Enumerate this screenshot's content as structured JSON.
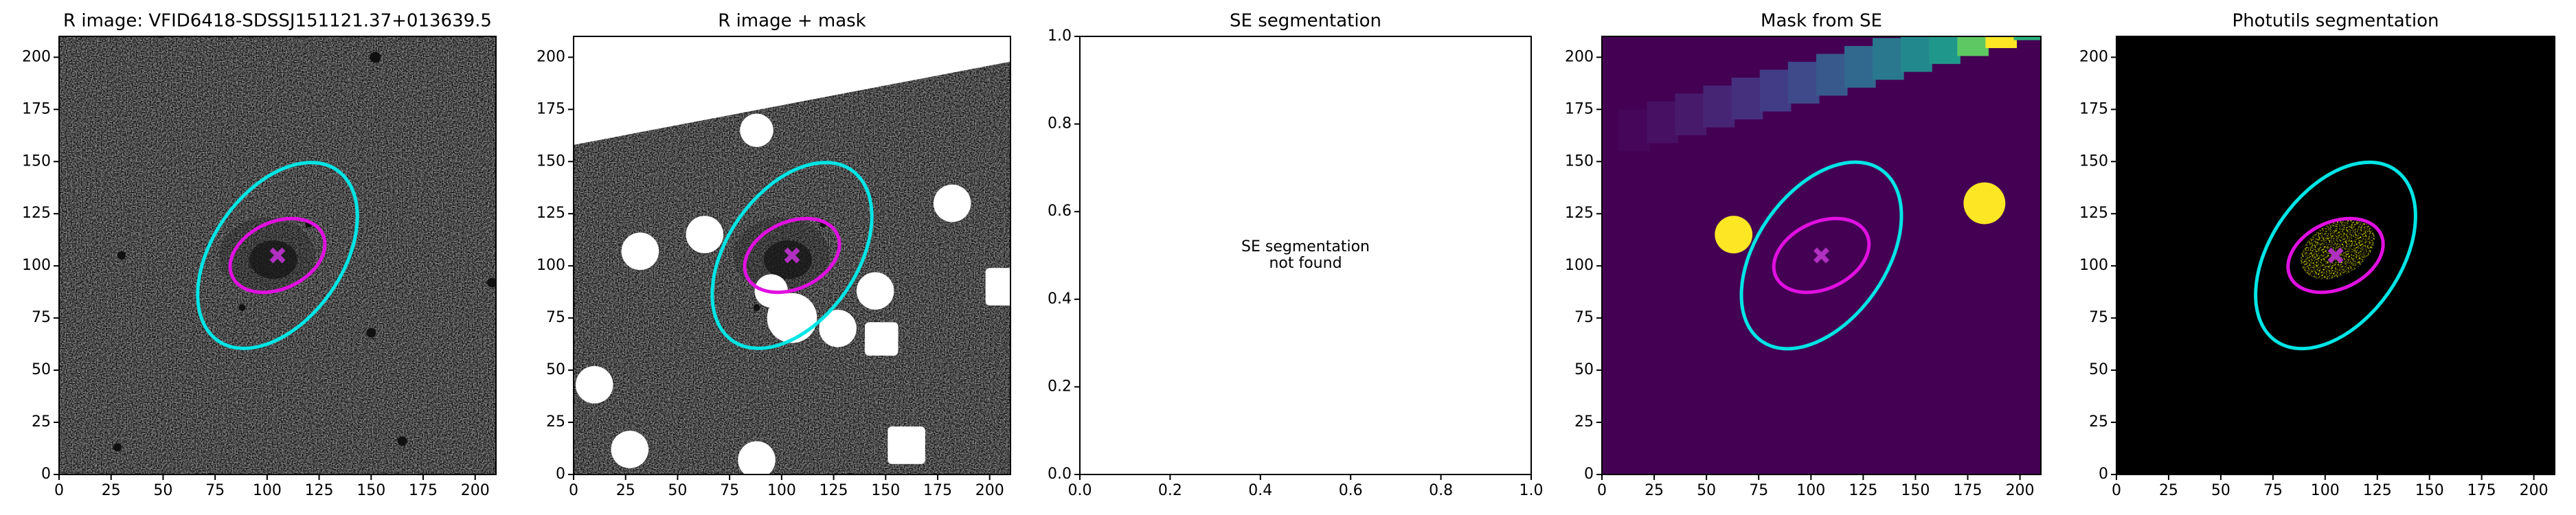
{
  "chart_data": [
    {
      "type": "image",
      "title": "R image: VFID6418-SDSSJ151121.37+013639.5",
      "background": "noise",
      "xlim": [
        0,
        210
      ],
      "ylim": [
        0,
        210
      ],
      "xticks": [
        0,
        25,
        50,
        75,
        100,
        125,
        150,
        175,
        200
      ],
      "yticks": [
        0,
        25,
        50,
        75,
        100,
        125,
        150,
        175,
        200
      ],
      "ellipses": [
        {
          "color": "#00e5e5",
          "x": 105,
          "y": 105,
          "width": 100,
          "height": 62,
          "angle": 55
        },
        {
          "color": "#e010e0",
          "x": 105,
          "y": 105,
          "width": 48,
          "height": 32,
          "angle": 25
        }
      ],
      "marker": {
        "x": 105,
        "y": 105,
        "color": "#b030c0"
      }
    },
    {
      "type": "image",
      "title": "R image + mask",
      "background": "masked-noise",
      "xlim": [
        0,
        210
      ],
      "ylim": [
        0,
        210
      ],
      "xticks": [
        0,
        25,
        50,
        75,
        100,
        125,
        150,
        175,
        200
      ],
      "yticks": [
        0,
        25,
        50,
        75,
        100,
        125,
        150,
        175,
        200
      ],
      "ellipses": [
        {
          "color": "#00e5e5",
          "x": 105,
          "y": 105,
          "width": 100,
          "height": 62,
          "angle": 55
        },
        {
          "color": "#e010e0",
          "x": 105,
          "y": 105,
          "width": 48,
          "height": 32,
          "angle": 25
        }
      ],
      "marker": {
        "x": 105,
        "y": 105,
        "color": "#b030c0"
      }
    },
    {
      "type": "empty",
      "title": "SE segmentation",
      "annotation_lines": [
        "SE segmentation",
        "not found"
      ],
      "xlim": [
        0,
        1
      ],
      "ylim": [
        0,
        1
      ],
      "xticks": [
        {
          "value": 0,
          "label": "0.0"
        },
        {
          "value": 0.2,
          "label": "0.2"
        },
        {
          "value": 0.4,
          "label": "0.4"
        },
        {
          "value": 0.6,
          "label": "0.6"
        },
        {
          "value": 0.8,
          "label": "0.8"
        },
        {
          "value": 1,
          "label": "1.0"
        }
      ],
      "yticks": [
        {
          "value": 0,
          "label": "0.0"
        },
        {
          "value": 0.2,
          "label": "0.2"
        },
        {
          "value": 0.4,
          "label": "0.4"
        },
        {
          "value": 0.6,
          "label": "0.6"
        },
        {
          "value": 0.8,
          "label": "0.8"
        },
        {
          "value": 1,
          "label": "1.0"
        }
      ]
    },
    {
      "type": "image",
      "title": "Mask from SE",
      "background": "mask",
      "xlim": [
        0,
        210
      ],
      "ylim": [
        0,
        210
      ],
      "xticks": [
        0,
        25,
        50,
        75,
        100,
        125,
        150,
        175,
        200
      ],
      "yticks": [
        0,
        25,
        50,
        75,
        100,
        125,
        150,
        175,
        200
      ],
      "ellipses": [
        {
          "color": "#00e5e5",
          "x": 105,
          "y": 105,
          "width": 100,
          "height": 62,
          "angle": 55
        },
        {
          "color": "#e010e0",
          "x": 105,
          "y": 105,
          "width": 48,
          "height": 32,
          "angle": 25
        }
      ],
      "marker": {
        "x": 105,
        "y": 105,
        "color": "#b030c0"
      }
    },
    {
      "type": "image",
      "title": "Photutils segmentation",
      "background": "segmentation",
      "xlim": [
        0,
        210
      ],
      "ylim": [
        0,
        210
      ],
      "xticks": [
        0,
        25,
        50,
        75,
        100,
        125,
        150,
        175,
        200
      ],
      "yticks": [
        0,
        25,
        50,
        75,
        100,
        125,
        150,
        175,
        200
      ],
      "ellipses": [
        {
          "color": "#00e5e5",
          "x": 105,
          "y": 105,
          "width": 100,
          "height": 62,
          "angle": 55
        },
        {
          "color": "#e010e0",
          "x": 105,
          "y": 105,
          "width": 48,
          "height": 32,
          "angle": 25
        }
      ],
      "marker": {
        "x": 105,
        "y": 105,
        "color": "#b030c0"
      }
    }
  ]
}
